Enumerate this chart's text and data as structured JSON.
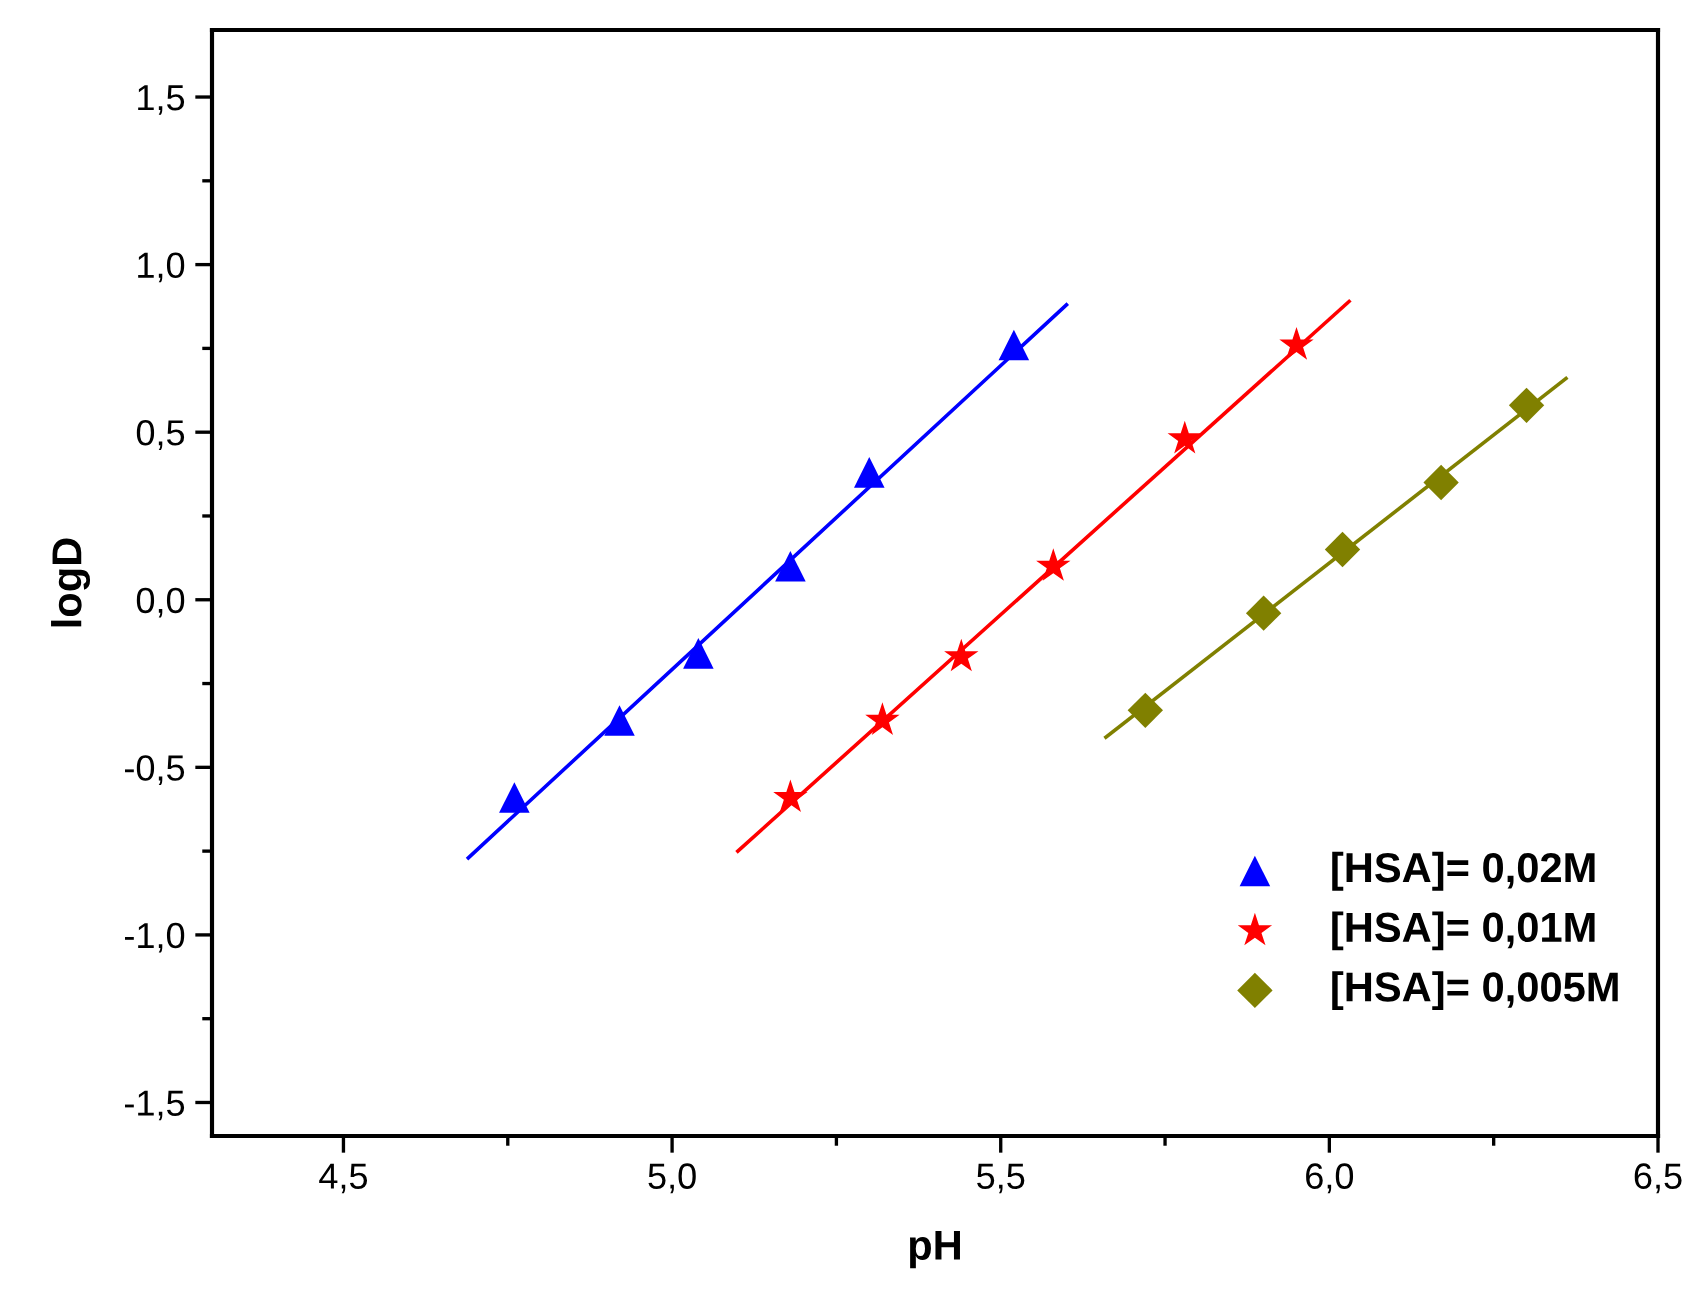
{
  "chart_data": {
    "type": "scatter",
    "xlabel": "pH",
    "ylabel": "logD",
    "xlim": [
      4.3,
      6.5
    ],
    "ylim": [
      -1.6,
      1.7
    ],
    "xticks": [
      {
        "value": 4.5,
        "label": "4,5"
      },
      {
        "value": 4.75,
        "label": null
      },
      {
        "value": 5.0,
        "label": "5,0"
      },
      {
        "value": 5.25,
        "label": null
      },
      {
        "value": 5.5,
        "label": "5,5"
      },
      {
        "value": 5.75,
        "label": null
      },
      {
        "value": 6.0,
        "label": "6,0"
      },
      {
        "value": 6.25,
        "label": null
      },
      {
        "value": 6.5,
        "label": "6,5"
      }
    ],
    "yticks": [
      {
        "value": -1.5,
        "label": "-1,5"
      },
      {
        "value": -1.25,
        "label": null
      },
      {
        "value": -1.0,
        "label": "-1,0"
      },
      {
        "value": -0.75,
        "label": null
      },
      {
        "value": -0.5,
        "label": "-0,5"
      },
      {
        "value": -0.25,
        "label": null
      },
      {
        "value": 0.0,
        "label": "0,0"
      },
      {
        "value": 0.25,
        "label": null
      },
      {
        "value": 0.5,
        "label": "0,5"
      },
      {
        "value": 0.75,
        "label": null
      },
      {
        "value": 1.0,
        "label": "1,0"
      },
      {
        "value": 1.25,
        "label": null
      },
      {
        "value": 1.5,
        "label": "1,5"
      }
    ],
    "grid": false,
    "legend": "bottom right",
    "series": [
      {
        "name": "[HSA]= 0,02M",
        "color": "#0000ff",
        "marker": "triangle",
        "x": [
          4.76,
          4.92,
          5.04,
          5.18,
          5.3,
          5.52
        ],
        "values": [
          -0.59,
          -0.36,
          -0.16,
          0.1,
          0.38,
          0.76
        ]
      },
      {
        "name": "[HSA]= 0,01M",
        "color": "#ff0000",
        "marker": "star",
        "x": [
          5.18,
          5.32,
          5.44,
          5.58,
          5.78,
          5.95
        ],
        "values": [
          -0.59,
          -0.36,
          -0.17,
          0.1,
          0.48,
          0.76
        ]
      },
      {
        "name": "[HSA]= 0,005M",
        "color": "#808000",
        "marker": "diamond",
        "x": [
          5.72,
          5.9,
          6.02,
          6.17,
          6.3
        ],
        "values": [
          -0.33,
          -0.04,
          0.15,
          0.35,
          0.58
        ]
      },
      {
        "type": "line",
        "color": "#0000ff",
        "marker": "none",
        "line_style": "solid",
        "x": [
          4.69,
          5.6
        ],
        "values": [
          -0.77,
          0.88
        ]
      },
      {
        "type": "line",
        "color": "#ff0000",
        "marker": "none",
        "line_style": "solid",
        "x": [
          5.1,
          6.03
        ],
        "values": [
          -0.75,
          0.89
        ]
      },
      {
        "type": "line",
        "color": "#808000",
        "marker": "none",
        "line_style": "solid",
        "x": [
          5.66,
          6.36
        ],
        "values": [
          -0.41,
          0.66
        ]
      }
    ]
  }
}
